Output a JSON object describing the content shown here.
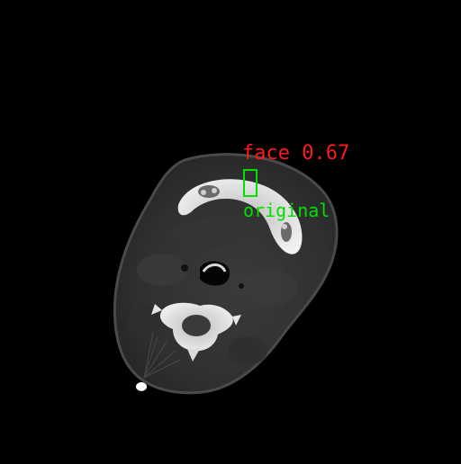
{
  "image": {
    "subject": "axial CT slice of head and neck",
    "background_color": "#000000"
  },
  "detection": {
    "prediction_label": "face 0.67",
    "prediction_class": "face",
    "prediction_score": 0.67,
    "ground_truth_label": "original",
    "prediction_color": "#ff1a1a",
    "ground_truth_color": "#00e000"
  }
}
